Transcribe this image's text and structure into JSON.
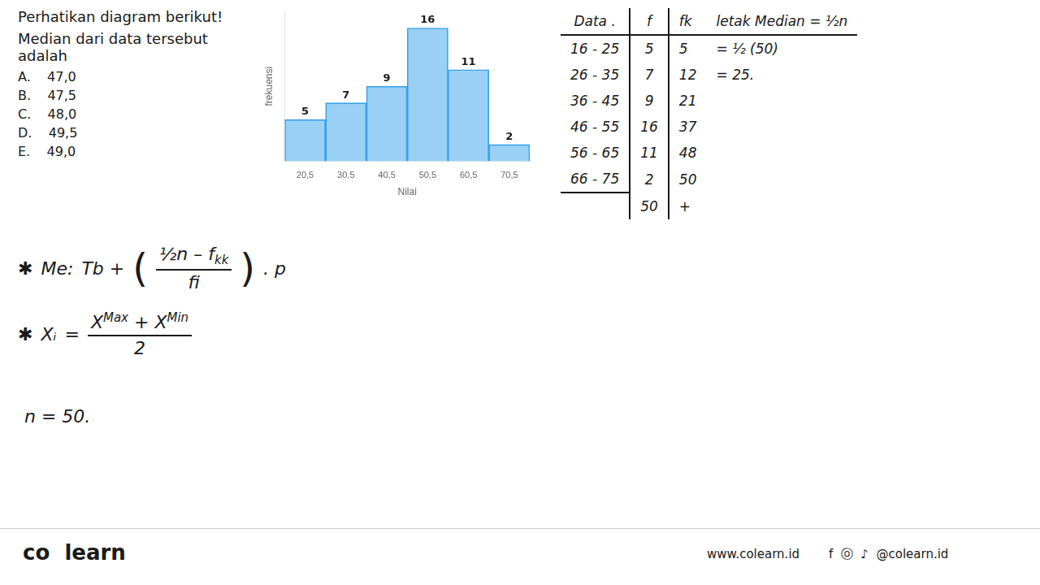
{
  "chart_data": {
    "type": "bar",
    "title": "Perhatikan diagram berikut!",
    "subtitle": "Median dari data tersebut adalah",
    "categories": [
      "20,5",
      "30,5",
      "40,5",
      "50,5",
      "60,5",
      "70,5"
    ],
    "values": [
      5,
      7,
      9,
      16,
      11,
      2
    ],
    "x_label": "Nilai",
    "y_label": "frekuensi",
    "ylim": [
      0,
      18
    ],
    "yticks": [],
    "tick_labels": "x",
    "grid": false,
    "data_labels": true,
    "annotations": {
      "options": [
        "A.    47,0",
        "B.    47,5",
        "C.    48,0",
        "D.    49,5",
        "E.    49,0"
      ],
      "table_header": [
        "Data .",
        "f",
        "fk",
        "letak Median = ½n"
      ],
      "table_rows": [
        [
          "16 - 25",
          "5",
          "5",
          "= ½ (50)"
        ],
        [
          "26 - 35",
          "7",
          "12",
          "= 25."
        ],
        [
          "36 - 45",
          "9",
          "21"
        ],
        [
          "46 - 55",
          "16",
          "37"
        ],
        [
          "56 - 65",
          "11",
          "48"
        ],
        [
          "66 - 75",
          "2",
          "50"
        ]
      ],
      "table_total": [
        "50",
        "+"
      ],
      "formula_median": [
        "✱",
        "Me:",
        "Tb +",
        "(",
        "½n – f",
        "kk",
        "fi",
        ")",
        ". p"
      ],
      "formula_xi": [
        "✱",
        "Xᵢ",
        "=",
        "X",
        "Max",
        "+",
        "X",
        "Min",
        "2"
      ],
      "note": "n = 50.",
      "footer": [
        "co  learn",
        "www.colearn.id",
        "f  ⓞ  ♪  @colearn.id"
      ]
    }
  }
}
